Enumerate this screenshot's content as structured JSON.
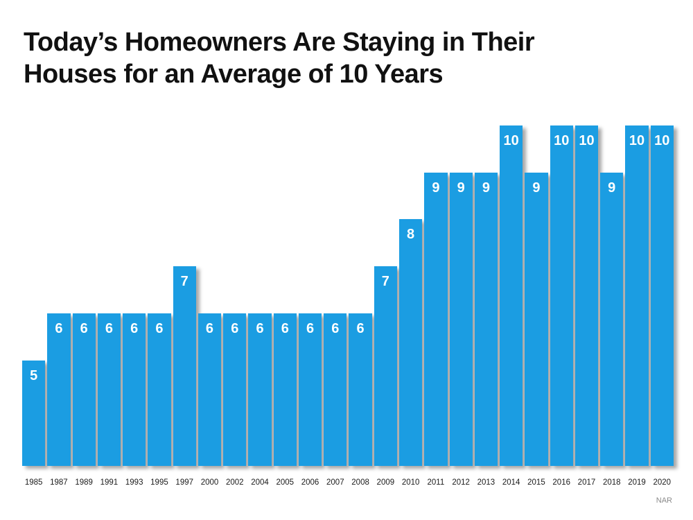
{
  "chart_data": {
    "type": "bar",
    "title": "Today’s Homeowners Are Staying in Their Houses for an Average of 10 Years",
    "categories": [
      "1985",
      "1987",
      "1989",
      "1991",
      "1993",
      "1995",
      "1997",
      "2000",
      "2002",
      "2004",
      "2005",
      "2006",
      "2007",
      "2008",
      "2009",
      "2010",
      "2011",
      "2012",
      "2013",
      "2014",
      "2015",
      "2016",
      "2017",
      "2018",
      "2019",
      "2020"
    ],
    "values": [
      5,
      6,
      6,
      6,
      6,
      6,
      7,
      6,
      6,
      6,
      6,
      6,
      6,
      6,
      7,
      8,
      9,
      9,
      9,
      10,
      9,
      10,
      10,
      9,
      10,
      10
    ],
    "xlabel": "",
    "ylabel": "",
    "ylim": [
      2.75,
      10
    ],
    "grid": false,
    "legend": null,
    "value_labels_shown": true,
    "bar_color": "#1B9DE2",
    "value_label_color": "#FFFFFF",
    "title_color": "#111111",
    "source": "NAR"
  }
}
